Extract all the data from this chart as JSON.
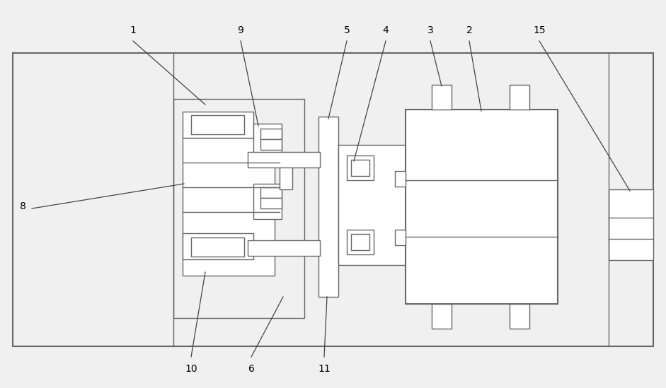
{
  "bg_color": "#f0f0f0",
  "line_color": "#666666",
  "ann_color": "#444444"
}
